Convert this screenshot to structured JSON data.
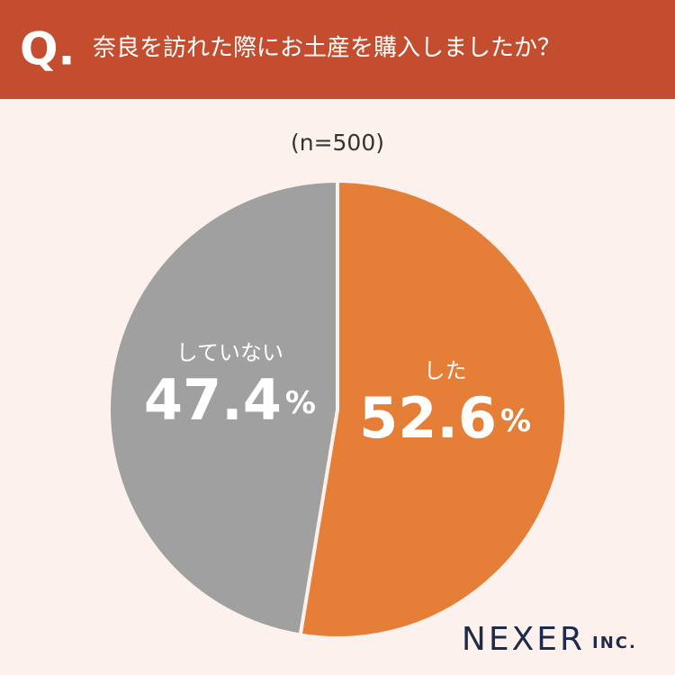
{
  "header": {
    "prefix": "Q.",
    "title": "奈良を訪れた際にお土産を購入しましたか？"
  },
  "chart_data": {
    "type": "pie",
    "subtitle": "(n=500)",
    "categories": [
      "した",
      "していない"
    ],
    "values": [
      52.6,
      47.4
    ],
    "value_labels": [
      "52.6%",
      "47.4%"
    ],
    "colors": [
      "#e57e36",
      "#a0a0a0"
    ]
  },
  "footer": {
    "brand": "NEXER",
    "brand_suffix": "INC."
  }
}
